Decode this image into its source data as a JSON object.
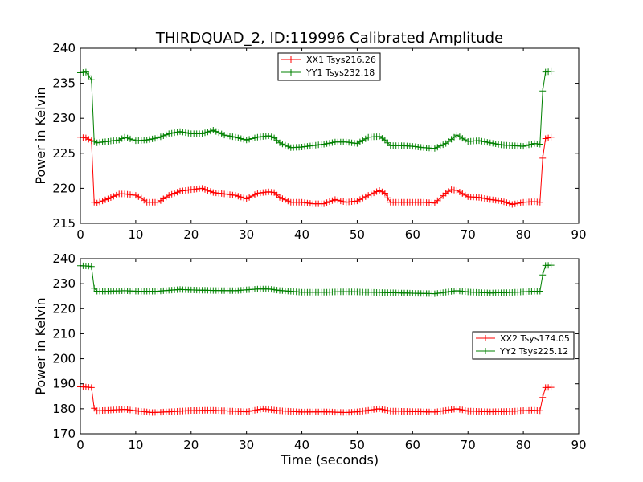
{
  "figure": {
    "title": "THIRDQUAD_2, ID:119996 Calibrated Amplitude"
  },
  "chart_data": [
    {
      "type": "line",
      "title": "THIRDQUAD_2, ID:119996 Calibrated Amplitude",
      "xlabel": "",
      "ylabel": "Power in Kelvin",
      "xlim": [
        0,
        90
      ],
      "ylim": [
        215,
        240
      ],
      "xticks": [
        0,
        10,
        20,
        30,
        40,
        50,
        60,
        70,
        80,
        90
      ],
      "yticks": [
        215,
        220,
        225,
        230,
        235,
        240
      ],
      "grid": false,
      "legend_position": "upper-center",
      "series": [
        {
          "name": "XX1 Tsys216.26",
          "color": "#ff0000",
          "marker": "plus",
          "x": [
            0,
            1,
            2,
            2.5,
            3,
            5,
            7,
            8,
            10,
            11,
            12,
            14,
            16,
            18,
            20,
            22,
            24,
            26,
            28,
            30,
            32,
            34,
            35,
            36,
            38,
            40,
            42,
            44,
            46,
            48,
            50,
            52,
            54,
            55,
            56,
            58,
            60,
            62,
            64,
            66,
            67,
            68,
            70,
            72,
            74,
            76,
            78,
            80,
            82,
            83,
            83.5,
            84,
            85
          ],
          "y": [
            227.3,
            227.2,
            226.8,
            218,
            217.9,
            218.5,
            219.2,
            219.2,
            219,
            218.6,
            218,
            218,
            219,
            219.6,
            219.8,
            220,
            219.4,
            219.2,
            219,
            218.5,
            219.3,
            219.5,
            219.4,
            218.7,
            218,
            218,
            217.8,
            217.8,
            218.4,
            218,
            218.2,
            219,
            219.7,
            219.3,
            218,
            218,
            218,
            218,
            217.9,
            219.3,
            219.8,
            219.7,
            218.8,
            218.7,
            218.4,
            218.2,
            217.7,
            218,
            218.1,
            218,
            224.3,
            227.1,
            227.3
          ]
        },
        {
          "name": "YY1 Tsys232.18",
          "color": "#008000",
          "marker": "plus",
          "x": [
            0,
            1,
            2,
            2.5,
            3,
            5,
            7,
            8,
            10,
            12,
            14,
            16,
            18,
            20,
            22,
            24,
            26,
            28,
            30,
            32,
            34,
            35,
            36,
            38,
            40,
            42,
            44,
            46,
            48,
            50,
            52,
            54,
            55,
            56,
            58,
            60,
            62,
            64,
            66,
            68,
            70,
            72,
            74,
            76,
            78,
            80,
            82,
            83,
            83.5,
            84,
            85
          ],
          "y": [
            236.5,
            236.6,
            235.5,
            226.7,
            226.5,
            226.7,
            226.9,
            227.3,
            226.8,
            226.9,
            227.2,
            227.8,
            228.1,
            227.8,
            227.8,
            228.3,
            227.6,
            227.3,
            226.9,
            227.3,
            227.5,
            227.2,
            226.5,
            225.8,
            225.9,
            226.1,
            226.3,
            226.6,
            226.6,
            226.4,
            227.3,
            227.4,
            226.9,
            226.1,
            226.1,
            226,
            225.8,
            225.7,
            226.4,
            227.6,
            226.7,
            226.8,
            226.5,
            226.2,
            226.1,
            226,
            226.4,
            226.3,
            233.9,
            236.6,
            236.7
          ]
        }
      ]
    },
    {
      "type": "line",
      "title": "",
      "xlabel": "Time (seconds)",
      "ylabel": "Power in Kelvin",
      "xlim": [
        0,
        90
      ],
      "ylim": [
        170,
        240
      ],
      "xticks": [
        0,
        10,
        20,
        30,
        40,
        50,
        60,
        70,
        80,
        90
      ],
      "yticks": [
        170,
        180,
        190,
        200,
        210,
        220,
        230,
        240
      ],
      "grid": false,
      "legend_position": "center-right",
      "series": [
        {
          "name": "XX2 Tsys174.05",
          "color": "#ff0000",
          "marker": "plus",
          "x": [
            0,
            1,
            2,
            2.5,
            3,
            5,
            8,
            10,
            13,
            16,
            20,
            24,
            28,
            30,
            33,
            36,
            40,
            44,
            48,
            50,
            54,
            56,
            60,
            64,
            68,
            70,
            74,
            78,
            80,
            82,
            83,
            83.5,
            84,
            85
          ],
          "y": [
            188.8,
            188.7,
            188.5,
            180.2,
            179.2,
            179.4,
            179.8,
            179.2,
            178.5,
            178.8,
            179.3,
            179.4,
            179,
            178.8,
            180,
            179.2,
            178.7,
            178.8,
            178.5,
            178.8,
            180,
            179.1,
            178.9,
            178.7,
            180,
            179.1,
            178.8,
            179,
            179.3,
            179.4,
            179.2,
            184.5,
            188.5,
            188.6
          ]
        },
        {
          "name": "YY2 Tsys225.12",
          "color": "#008000",
          "marker": "plus",
          "x": [
            0,
            1,
            2,
            2.5,
            3,
            5,
            8,
            10,
            14,
            18,
            20,
            24,
            28,
            32,
            34,
            36,
            40,
            44,
            48,
            52,
            56,
            60,
            64,
            68,
            70,
            74,
            78,
            82,
            83,
            83.5,
            84,
            85
          ],
          "y": [
            237.2,
            237.1,
            236.9,
            228.2,
            227,
            227,
            227.2,
            227,
            227,
            227.7,
            227.5,
            227.3,
            227.2,
            227.9,
            227.9,
            227.3,
            226.6,
            226.6,
            226.8,
            226.6,
            226.4,
            226.2,
            226,
            227.2,
            226.7,
            226.3,
            226.5,
            227,
            227,
            233.5,
            237.3,
            237.4
          ]
        }
      ]
    }
  ]
}
